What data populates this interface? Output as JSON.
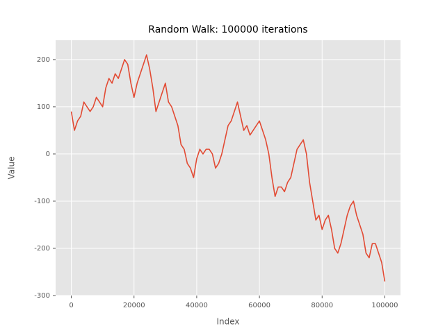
{
  "chart_data": {
    "type": "line",
    "title": "Random Walk: 100000 iterations",
    "x_label": "Index",
    "y_label": "Value",
    "x": [
      0,
      1000,
      2000,
      3000,
      4000,
      5000,
      6000,
      7000,
      8000,
      9000,
      10000,
      11000,
      12000,
      13000,
      14000,
      15000,
      16000,
      17000,
      18000,
      19000,
      20000,
      21000,
      22000,
      23000,
      24000,
      25000,
      26000,
      27000,
      28000,
      29000,
      30000,
      31000,
      32000,
      33000,
      34000,
      35000,
      36000,
      37000,
      38000,
      39000,
      40000,
      41000,
      42000,
      43000,
      44000,
      45000,
      46000,
      47000,
      48000,
      49000,
      50000,
      51000,
      52000,
      53000,
      54000,
      55000,
      56000,
      57000,
      58000,
      59000,
      60000,
      61000,
      62000,
      63000,
      64000,
      65000,
      66000,
      67000,
      68000,
      69000,
      70000,
      71000,
      72000,
      73000,
      74000,
      75000,
      76000,
      77000,
      78000,
      79000,
      80000,
      81000,
      82000,
      83000,
      84000,
      85000,
      86000,
      87000,
      88000,
      89000,
      90000,
      91000,
      92000,
      93000,
      94000,
      95000,
      96000,
      97000,
      98000,
      99000,
      100000
    ],
    "series": [
      {
        "name": "Value",
        "color": "#e24a33",
        "values": [
          90,
          50,
          70,
          80,
          110,
          100,
          90,
          100,
          120,
          110,
          100,
          140,
          160,
          150,
          170,
          160,
          180,
          200,
          190,
          150,
          120,
          150,
          170,
          190,
          210,
          180,
          140,
          90,
          110,
          130,
          150,
          110,
          100,
          80,
          60,
          20,
          10,
          -20,
          -30,
          -50,
          -10,
          10,
          0,
          10,
          10,
          0,
          -30,
          -20,
          0,
          30,
          60,
          70,
          90,
          110,
          80,
          50,
          60,
          40,
          50,
          60,
          70,
          50,
          30,
          0,
          -50,
          -90,
          -70,
          -70,
          -80,
          -60,
          -50,
          -20,
          10,
          20,
          30,
          0,
          -60,
          -100,
          -140,
          -130,
          -160,
          -140,
          -130,
          -160,
          -200,
          -210,
          -190,
          -160,
          -130,
          -110,
          -100,
          -130,
          -150,
          -170,
          -210,
          -220,
          -190,
          -190,
          -210,
          -230,
          -270
        ]
      }
    ],
    "xlim": [
      -5000,
      105000
    ],
    "ylim": [
      -300,
      241
    ],
    "xticks": [
      0,
      20000,
      40000,
      60000,
      80000,
      100000
    ],
    "yticks": [
      -300,
      -200,
      -100,
      0,
      100,
      200
    ],
    "grid": true
  }
}
